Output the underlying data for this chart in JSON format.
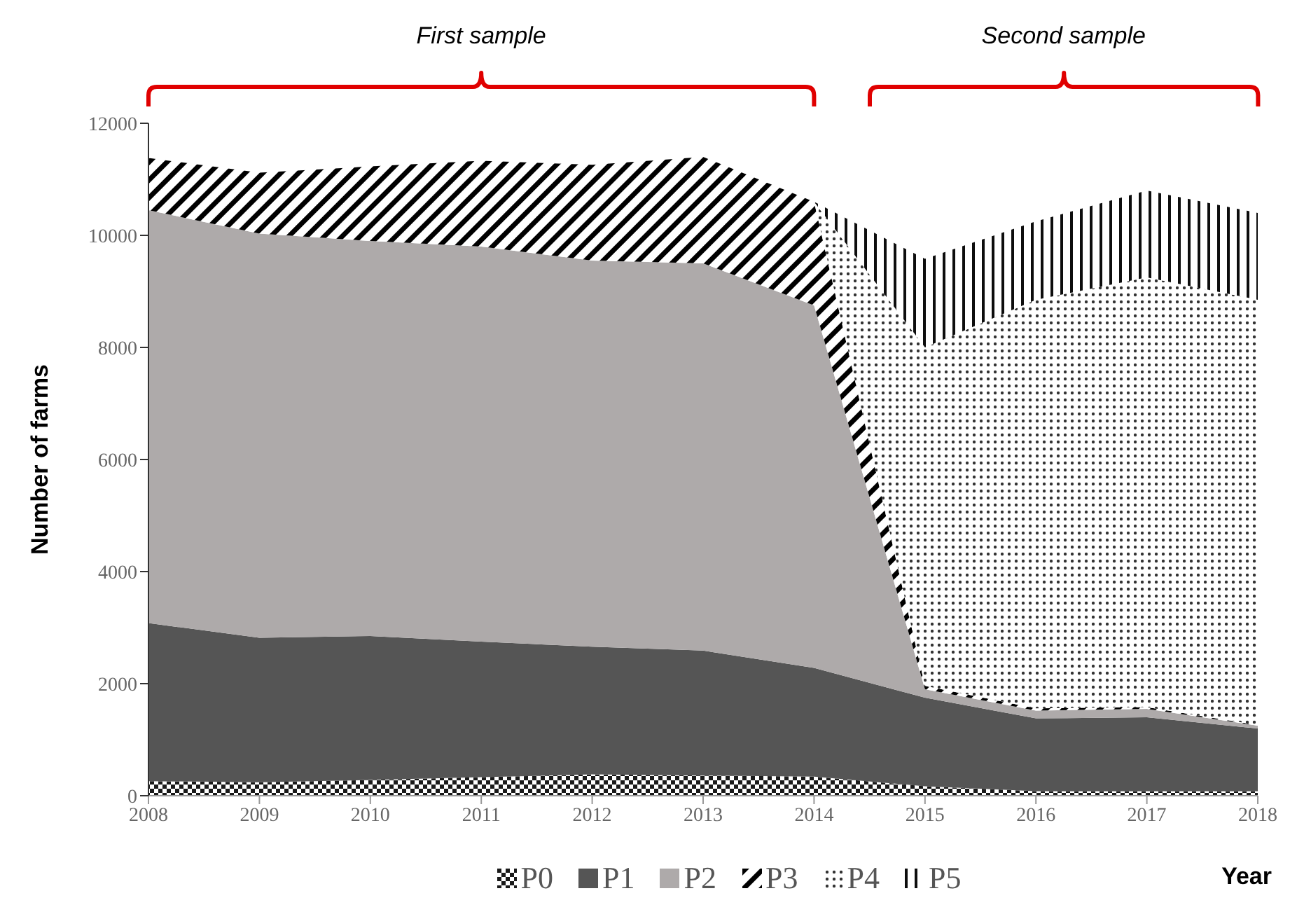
{
  "chart_data": {
    "type": "area",
    "stacked": true,
    "xlabel": "Year",
    "ylabel": "Number of farms",
    "annotations": [
      "First sample",
      "Second sample"
    ],
    "x": [
      2008,
      2009,
      2010,
      2011,
      2012,
      2013,
      2014,
      2015,
      2016,
      2017,
      2018
    ],
    "series": [
      {
        "name": "P0",
        "color": "#1a1a1a",
        "values": [
          260,
          240,
          280,
          330,
          380,
          360,
          340,
          170,
          80,
          80,
          80
        ]
      },
      {
        "name": "P1",
        "color": "#555555",
        "values": [
          2820,
          2580,
          2570,
          2420,
          2280,
          2230,
          1940,
          1580,
          1300,
          1320,
          1120
        ]
      },
      {
        "name": "P2",
        "color": "#aeaaaa",
        "values": [
          7370,
          7210,
          7050,
          7050,
          6890,
          6910,
          6470,
          150,
          140,
          150,
          50
        ]
      },
      {
        "name": "P3",
        "color": "#000000",
        "values": [
          930,
          1090,
          1330,
          1530,
          1710,
          1900,
          1850,
          60,
          40,
          30,
          10
        ]
      },
      {
        "name": "P4",
        "color": "#333333",
        "values": [
          null,
          null,
          null,
          null,
          null,
          null,
          0,
          6040,
          7290,
          7670,
          7590
        ]
      },
      {
        "name": "P5",
        "color": "#0d0d0d",
        "values": [
          null,
          null,
          null,
          null,
          null,
          null,
          0,
          1580,
          1400,
          1550,
          1550
        ]
      }
    ],
    "xlim": [
      2008,
      2018
    ],
    "xticks": [
      2008,
      2009,
      2010,
      2011,
      2012,
      2013,
      2014,
      2015,
      2016,
      2017,
      2018
    ],
    "ylim": [
      0,
      12000
    ],
    "yticks": [
      0,
      2000,
      4000,
      6000,
      8000,
      10000,
      12000
    ],
    "grid": false,
    "legend": "bottom"
  }
}
